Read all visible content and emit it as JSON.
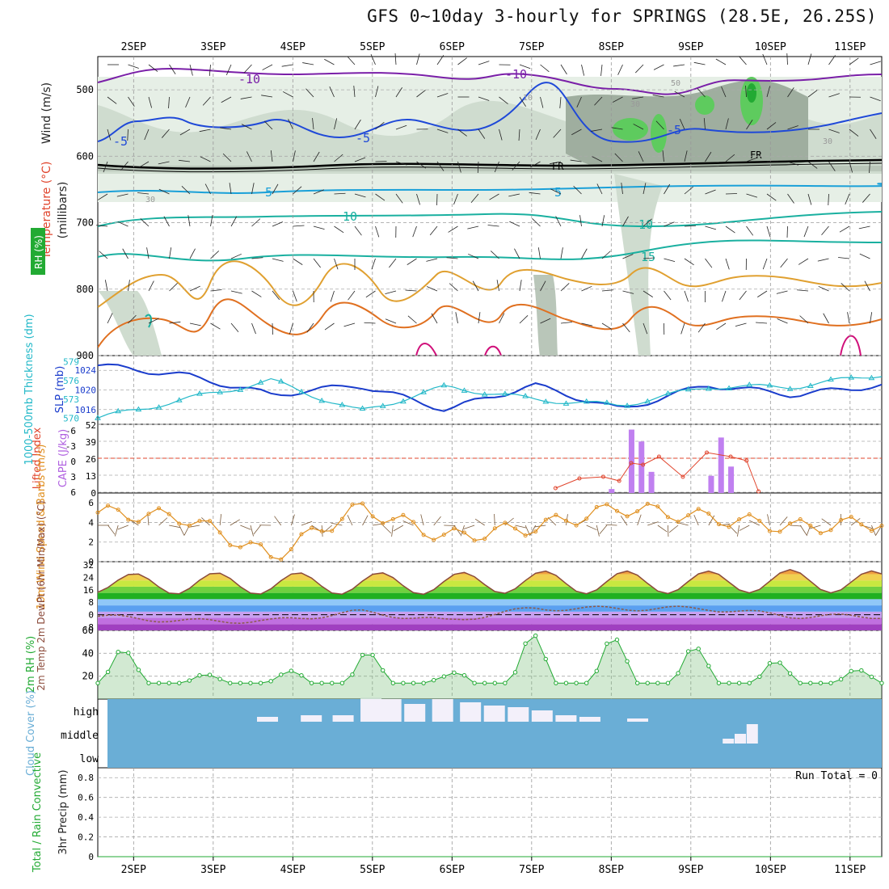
{
  "title": "GFS 0~10day 3-hourly for SPRINGS (28.5E, 26.25S)",
  "x_axis": {
    "date_labels": [
      "2SEP",
      "3SEP",
      "4SEP",
      "5SEP",
      "6SEP",
      "7SEP",
      "8SEP",
      "9SEP",
      "10SEP",
      "11SEP"
    ]
  },
  "panels": {
    "upper": {
      "ylabels": [
        {
          "text": "Wind (m/s)",
          "color": "#222222"
        },
        {
          "text": "Temperature (°C)",
          "color": "#e0442c"
        },
        {
          "text": "RH (%)",
          "color": "#22aa33"
        },
        {
          "text": "(millibars)",
          "color": "#222222"
        }
      ],
      "y_ticks": [
        "500",
        "600",
        "700",
        "800",
        "900"
      ],
      "contour_labels": [
        "-10",
        "-10",
        "-5",
        "-5",
        "-5",
        "FR",
        "FR",
        "-5",
        "5",
        "5",
        "10",
        "10",
        "15",
        "30",
        "30",
        "30",
        "50",
        "10"
      ]
    },
    "thickness": {
      "ylabel_left": "1000-500mb Thickness (dm)",
      "ylabel_right": "SLP (mb)",
      "left_ticks": [
        "579",
        "576",
        "573",
        "570"
      ],
      "right_ticks": [
        "1024",
        "1020",
        "1016"
      ]
    },
    "cape": {
      "ylabel_left": "Lifted Index",
      "ylabel_right": "CAPE (J/kg)",
      "li_ticks": [
        "-6",
        "-3",
        "0",
        "3",
        "6"
      ],
      "cape_ticks": [
        "52",
        "39",
        "26",
        "13",
        "0"
      ]
    },
    "wind10m": {
      "ylabel": "10m Wind Speed & Barbs (m/s)",
      "y_ticks": [
        "6",
        "4",
        "2",
        "0"
      ]
    },
    "temp2m": {
      "ylabel": "2m Temp 2m DewPt (6hr Min/Max) (°C)",
      "y_ticks": [
        "32",
        "24",
        "16",
        "8",
        "0",
        "-8"
      ]
    },
    "rh2m": {
      "ylabel": "2m RH (%)",
      "y_ticks": [
        "60",
        "40",
        "20"
      ]
    },
    "cloud": {
      "ylabel": "Cloud Cover (%)",
      "levels": [
        "high",
        "middle",
        "low"
      ]
    },
    "precip": {
      "ylabel_left": "Total / Rain Convective",
      "ylabel_right": "3hr Precip (mm)",
      "y_ticks": [
        "0.8",
        "0.6",
        "0.4",
        "0.2",
        "0"
      ],
      "run_total": "Run Total = 0"
    }
  },
  "colors": {
    "background": "#ffffff",
    "cloud_fill": "#6aaed6",
    "rh_fill": "#22aa33",
    "cape_bar": "#c080f0",
    "slp_line": "#1a3ccc",
    "thickness_line": "#22b8c8",
    "temp_brown": "#8b4a3a",
    "dewpt": "#8b5a4a"
  },
  "chart_data": [
    {
      "type": "line",
      "title": "1000-500mb Thickness (dm) and SLP (mb)",
      "x": [
        "2SEP",
        "3SEP",
        "4SEP",
        "5SEP",
        "6SEP",
        "7SEP",
        "8SEP",
        "9SEP",
        "10SEP",
        "11SEP"
      ],
      "series": [
        {
          "name": "SLP (mb)",
          "values": [
            1025,
            1023,
            1019,
            1021,
            1016,
            1021,
            1016,
            1021,
            1019,
            1021
          ]
        },
        {
          "name": "1000-500mb Thickness (dm)",
          "values": [
            570,
            573,
            576,
            571,
            575,
            573,
            572,
            575,
            575,
            577
          ]
        }
      ],
      "ylim_left": [
        569,
        580
      ],
      "ylim_right": [
        1013,
        1027
      ]
    },
    {
      "type": "bar",
      "title": "CAPE (J/kg)",
      "x": [
        "8.0SEP",
        "8.25SEP",
        "8.375SEP",
        "8.5SEP",
        "9.25SEP",
        "9.375SEP",
        "9.5SEP"
      ],
      "values": [
        3,
        48,
        39,
        16,
        13,
        42,
        20
      ],
      "ylim": [
        0,
        52
      ]
    },
    {
      "type": "line",
      "title": "10m Wind Speed (m/s)",
      "x": [
        "2SEP",
        "3SEP",
        "4SEP",
        "5SEP",
        "6SEP",
        "7SEP",
        "8SEP",
        "9SEP",
        "10SEP",
        "11SEP"
      ],
      "values": [
        5.0,
        4.5,
        0.5,
        5.5,
        2.5,
        3.5,
        5.5,
        4.5,
        3.5,
        4.0
      ],
      "ylim": [
        0,
        7
      ]
    },
    {
      "type": "line",
      "title": "2m Temp / 2m DewPt (°C)",
      "x": [
        "2SEP",
        "3SEP",
        "4SEP",
        "5SEP",
        "6SEP",
        "7SEP",
        "8SEP",
        "9SEP",
        "10SEP",
        "11SEP"
      ],
      "series": [
        {
          "name": "2m Temp max",
          "values": [
            26,
            27,
            27,
            27,
            27,
            28,
            28,
            28,
            29,
            28
          ]
        },
        {
          "name": "2m Temp min",
          "values": [
            14,
            13,
            13,
            13,
            13,
            14,
            13,
            14,
            14,
            14
          ]
        },
        {
          "name": "2m DewPt",
          "values": [
            -1,
            -4,
            -4,
            2,
            -4,
            4,
            4,
            4,
            -1,
            -1
          ]
        }
      ],
      "ylim": [
        -10,
        34
      ]
    },
    {
      "type": "area",
      "title": "2m RH (%)",
      "x": [
        "2SEP",
        "3SEP",
        "4SEP",
        "5SEP",
        "6SEP",
        "7SEP",
        "8SEP",
        "9SEP",
        "10SEP",
        "11SEP"
      ],
      "values": [
        52,
        22,
        20,
        43,
        20,
        57,
        53,
        44,
        30,
        24
      ],
      "ylim": [
        0,
        60
      ]
    },
    {
      "type": "line",
      "title": "3hr Precip (mm)",
      "x": [
        "2SEP",
        "3SEP",
        "4SEP",
        "5SEP",
        "6SEP",
        "7SEP",
        "8SEP",
        "9SEP",
        "10SEP",
        "11SEP"
      ],
      "values": [
        0,
        0,
        0,
        0,
        0,
        0,
        0,
        0,
        0,
        0
      ],
      "ylim": [
        0,
        0.9
      ]
    }
  ]
}
